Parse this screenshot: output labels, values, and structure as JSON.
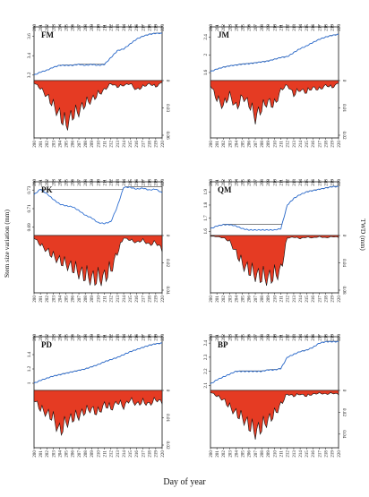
{
  "figure": {
    "xlabel": "Day of year",
    "left_ylabel": "Stem size variation   (mm)",
    "right_ylabel": "TWD    (mm)"
  },
  "colors": {
    "ssv_line": "#2f6fd1",
    "ref_line": "#3a3a3a",
    "twd_fill": "#e53b23",
    "axis": "#111111"
  },
  "chart_data": [
    {
      "type": "area",
      "label": "FM",
      "x_range": [
        200,
        220
      ],
      "x_ticks": [
        200,
        201,
        202,
        203,
        204,
        205,
        206,
        207,
        208,
        209,
        210,
        211,
        212,
        213,
        214,
        215,
        216,
        217,
        218,
        219,
        220
      ],
      "ssv": {
        "ylim": [
          3.18,
          3.66
        ],
        "ticks": [
          3.2,
          3.4,
          3.6
        ],
        "days": [
          200,
          201,
          202,
          203,
          204,
          205,
          206,
          207,
          208,
          209,
          210,
          211,
          212,
          213,
          214,
          215,
          216,
          217,
          218,
          219,
          220
        ],
        "values": [
          3.2,
          3.23,
          3.25,
          3.28,
          3.3,
          3.3,
          3.3,
          3.31,
          3.3,
          3.31,
          3.3,
          3.31,
          3.38,
          3.45,
          3.47,
          3.52,
          3.57,
          3.6,
          3.62,
          3.63,
          3.63
        ]
      },
      "twd": {
        "ylim": [
          0,
          0.06
        ],
        "ticks": [
          0,
          0.03,
          0.06
        ],
        "days": [
          200,
          201,
          202,
          203,
          204,
          205,
          206,
          207,
          208,
          209,
          210,
          211,
          212,
          213,
          214,
          215,
          216,
          217,
          218,
          219,
          220
        ],
        "values": [
          0.003,
          0.01,
          0.02,
          0.032,
          0.045,
          0.058,
          0.045,
          0.04,
          0.03,
          0.025,
          0.018,
          0.012,
          0.004,
          0.008,
          0.006,
          0.004,
          0.012,
          0.008,
          0.004,
          0.008,
          0.002
        ]
      }
    },
    {
      "type": "area",
      "label": "JM",
      "x_range": [
        200,
        220
      ],
      "x_ticks": [
        200,
        201,
        202,
        203,
        204,
        205,
        206,
        207,
        208,
        209,
        210,
        211,
        212,
        213,
        214,
        215,
        216,
        217,
        218,
        219,
        220
      ],
      "ssv": {
        "ylim": [
          1.5,
          2.55
        ],
        "ticks": [
          1.6,
          2.0,
          2.4
        ],
        "days": [
          200,
          201,
          202,
          203,
          204,
          205,
          206,
          207,
          208,
          209,
          210,
          211,
          212,
          213,
          214,
          215,
          216,
          217,
          218,
          219,
          220
        ],
        "values": [
          1.62,
          1.68,
          1.72,
          1.75,
          1.77,
          1.79,
          1.8,
          1.82,
          1.84,
          1.86,
          1.9,
          1.94,
          1.96,
          2.05,
          2.14,
          2.2,
          2.28,
          2.35,
          2.4,
          2.44,
          2.46
        ]
      },
      "twd": {
        "ylim": [
          0,
          0.02
        ],
        "ticks": [
          0,
          0.01,
          0.02
        ],
        "days": [
          200,
          201,
          202,
          203,
          204,
          205,
          206,
          207,
          208,
          209,
          210,
          211,
          212,
          213,
          214,
          215,
          216,
          217,
          218,
          219,
          220
        ],
        "values": [
          0.002,
          0.008,
          0.011,
          0.006,
          0.012,
          0.007,
          0.01,
          0.016,
          0.012,
          0.009,
          0.011,
          0.004,
          0.002,
          0.006,
          0.004,
          0.005,
          0.003,
          0.004,
          0.002,
          0.003,
          0.001
        ]
      }
    },
    {
      "type": "area",
      "label": "PK",
      "x_range": [
        200,
        220
      ],
      "x_ticks": [
        200,
        201,
        202,
        203,
        204,
        205,
        206,
        207,
        208,
        209,
        210,
        211,
        212,
        213,
        214,
        215,
        216,
        217,
        218,
        219,
        220
      ],
      "ssv": {
        "ylim": [
          0.685,
          0.735
        ],
        "ticks": [
          0.69,
          0.71,
          0.73
        ],
        "days": [
          200,
          201,
          202,
          203,
          204,
          205,
          206,
          207,
          208,
          209,
          210,
          211,
          212,
          213,
          214,
          215,
          216,
          217,
          218,
          219,
          220
        ],
        "values": [
          0.725,
          0.731,
          0.726,
          0.72,
          0.715,
          0.713,
          0.712,
          0.708,
          0.703,
          0.7,
          0.695,
          0.694,
          0.696,
          0.712,
          0.733,
          0.733,
          0.731,
          0.732,
          0.73,
          0.731,
          0.727
        ]
      },
      "twd": {
        "ylim": [
          0,
          0.04
        ],
        "ticks": [
          0,
          0.02,
          0.04
        ],
        "days": [
          200,
          201,
          202,
          203,
          204,
          205,
          206,
          207,
          208,
          209,
          210,
          211,
          212,
          213,
          214,
          215,
          216,
          217,
          218,
          219,
          220
        ],
        "values": [
          0.002,
          0.008,
          0.013,
          0.018,
          0.022,
          0.025,
          0.028,
          0.032,
          0.035,
          0.037,
          0.038,
          0.036,
          0.03,
          0.015,
          0.002,
          0.004,
          0.006,
          0.004,
          0.008,
          0.006,
          0.012
        ]
      }
    },
    {
      "type": "area",
      "label": "QM",
      "x_range": [
        200,
        220
      ],
      "x_ticks": [
        200,
        201,
        202,
        203,
        204,
        205,
        206,
        207,
        208,
        209,
        210,
        211,
        212,
        213,
        214,
        215,
        216,
        217,
        218,
        219,
        220
      ],
      "ssv": {
        "ylim": [
          1.595,
          1.95
        ],
        "ticks": [
          1.6,
          1.7,
          1.8,
          1.9
        ],
        "days": [
          200,
          201,
          202,
          203,
          204,
          205,
          206,
          207,
          208,
          209,
          210,
          211,
          212,
          213,
          214,
          215,
          216,
          217,
          218,
          219,
          220
        ],
        "values": [
          1.62,
          1.64,
          1.65,
          1.65,
          1.64,
          1.62,
          1.61,
          1.61,
          1.61,
          1.61,
          1.61,
          1.62,
          1.8,
          1.85,
          1.88,
          1.9,
          1.91,
          1.92,
          1.93,
          1.94,
          1.94
        ]
      },
      "twd": {
        "ylim": [
          0,
          0.08
        ],
        "ticks": [
          0,
          0.04,
          0.08
        ],
        "days": [
          200,
          201,
          202,
          203,
          204,
          205,
          206,
          207,
          208,
          209,
          210,
          211,
          212,
          213,
          214,
          215,
          216,
          217,
          218,
          219,
          220
        ],
        "values": [
          0.001,
          0.002,
          0.004,
          0.01,
          0.03,
          0.05,
          0.06,
          0.068,
          0.072,
          0.074,
          0.07,
          0.06,
          0.004,
          0.003,
          0.005,
          0.003,
          0.004,
          0.002,
          0.004,
          0.002,
          0.003
        ]
      }
    },
    {
      "type": "area",
      "label": "PD",
      "x_range": [
        200,
        220
      ],
      "x_ticks": [
        200,
        201,
        202,
        203,
        204,
        205,
        206,
        207,
        208,
        209,
        210,
        211,
        212,
        213,
        214,
        215,
        216,
        217,
        218,
        219,
        220
      ],
      "ssv": {
        "ylim": [
          0.95,
          1.6
        ],
        "ticks": [
          1.0,
          1.2,
          1.4
        ],
        "days": [
          200,
          201,
          202,
          203,
          204,
          205,
          206,
          207,
          208,
          209,
          210,
          211,
          212,
          213,
          214,
          215,
          216,
          217,
          218,
          219,
          220
        ],
        "values": [
          1.0,
          1.04,
          1.07,
          1.1,
          1.12,
          1.14,
          1.16,
          1.18,
          1.2,
          1.23,
          1.26,
          1.3,
          1.33,
          1.36,
          1.4,
          1.44,
          1.47,
          1.5,
          1.53,
          1.55,
          1.56
        ]
      },
      "twd": {
        "ylim": [
          0,
          0.02
        ],
        "ticks": [
          0,
          0.01,
          0.02
        ],
        "days": [
          200,
          201,
          202,
          203,
          204,
          205,
          206,
          207,
          208,
          209,
          210,
          211,
          212,
          213,
          214,
          215,
          216,
          217,
          218,
          219,
          220
        ],
        "values": [
          0.004,
          0.008,
          0.01,
          0.012,
          0.018,
          0.014,
          0.012,
          0.011,
          0.009,
          0.008,
          0.01,
          0.006,
          0.008,
          0.005,
          0.007,
          0.004,
          0.006,
          0.005,
          0.006,
          0.004,
          0.005
        ]
      }
    },
    {
      "type": "area",
      "label": "BP",
      "x_range": [
        200,
        220
      ],
      "x_ticks": [
        200,
        201,
        202,
        203,
        204,
        205,
        206,
        207,
        208,
        209,
        210,
        211,
        212,
        213,
        214,
        215,
        216,
        217,
        218,
        219,
        220
      ],
      "ssv": {
        "ylim": [
          2.09,
          2.42
        ],
        "ticks": [
          2.1,
          2.2,
          2.3,
          2.4
        ],
        "days": [
          200,
          201,
          202,
          203,
          204,
          205,
          206,
          207,
          208,
          209,
          210,
          211,
          212,
          213,
          214,
          215,
          216,
          217,
          218,
          219,
          220
        ],
        "values": [
          2.11,
          2.14,
          2.16,
          2.18,
          2.2,
          2.2,
          2.2,
          2.2,
          2.2,
          2.21,
          2.21,
          2.22,
          2.3,
          2.32,
          2.34,
          2.35,
          2.37,
          2.4,
          2.41,
          2.41,
          2.41
        ]
      },
      "twd": {
        "ylim": [
          0,
          0.05
        ],
        "ticks": [
          0,
          0.02,
          0.04
        ],
        "days": [
          200,
          201,
          202,
          203,
          204,
          205,
          206,
          207,
          208,
          209,
          210,
          211,
          212,
          213,
          214,
          215,
          216,
          217,
          218,
          219,
          220
        ],
        "values": [
          0.002,
          0.006,
          0.01,
          0.018,
          0.025,
          0.03,
          0.038,
          0.045,
          0.04,
          0.032,
          0.026,
          0.015,
          0.004,
          0.006,
          0.004,
          0.006,
          0.004,
          0.003,
          0.004,
          0.003,
          0.004
        ]
      }
    }
  ]
}
